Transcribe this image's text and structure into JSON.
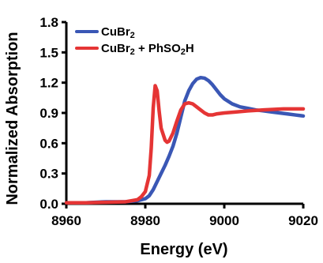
{
  "chart_data": {
    "type": "line",
    "title": "",
    "xlabel": "Energy (eV)",
    "ylabel": "Normalized  Absorption",
    "xlim": [
      8960,
      9020
    ],
    "ylim": [
      0.0,
      1.8
    ],
    "xticks": [
      8960,
      8980,
      9000,
      9020
    ],
    "yticks": [
      0.0,
      0.3,
      0.6,
      0.9,
      1.2,
      1.5,
      1.8
    ],
    "xtick_labels": [
      "8960",
      "8980",
      "9000",
      "9020"
    ],
    "ytick_labels": [
      "0.0",
      "0.3",
      "0.6",
      "0.9",
      "1.2",
      "1.5",
      "1.8"
    ],
    "grid": false,
    "legend_position": "top-left",
    "series": [
      {
        "legend_base": "CuBr",
        "legend_sub": "2",
        "legend_rest": "",
        "color": "#3a57b5",
        "points": [
          [
            8960,
            0.01
          ],
          [
            8965,
            0.01
          ],
          [
            8970,
            0.02
          ],
          [
            8975,
            0.02
          ],
          [
            8978,
            0.03
          ],
          [
            8980,
            0.05
          ],
          [
            8981,
            0.08
          ],
          [
            8982,
            0.14
          ],
          [
            8983,
            0.22
          ],
          [
            8984,
            0.3
          ],
          [
            8985,
            0.38
          ],
          [
            8986,
            0.47
          ],
          [
            8987,
            0.57
          ],
          [
            8988,
            0.7
          ],
          [
            8989,
            0.86
          ],
          [
            8990,
            1.02
          ],
          [
            8991,
            1.12
          ],
          [
            8992,
            1.19
          ],
          [
            8993,
            1.235
          ],
          [
            8994,
            1.25
          ],
          [
            8995,
            1.245
          ],
          [
            8996,
            1.22
          ],
          [
            8997,
            1.18
          ],
          [
            8998,
            1.13
          ],
          [
            8999,
            1.08
          ],
          [
            9000,
            1.04
          ],
          [
            9002,
            0.99
          ],
          [
            9004,
            0.96
          ],
          [
            9006,
            0.945
          ],
          [
            9008,
            0.93
          ],
          [
            9010,
            0.92
          ],
          [
            9012,
            0.91
          ],
          [
            9014,
            0.9
          ],
          [
            9016,
            0.89
          ],
          [
            9018,
            0.88
          ],
          [
            9020,
            0.87
          ]
        ]
      },
      {
        "legend_base": "CuBr",
        "legend_sub": "2",
        "legend_rest": " + PhSO",
        "legend_sub2": "2",
        "legend_rest2": "H",
        "color": "#e53535",
        "points": [
          [
            8960,
            0.01
          ],
          [
            8965,
            0.01
          ],
          [
            8970,
            0.015
          ],
          [
            8975,
            0.02
          ],
          [
            8978,
            0.04
          ],
          [
            8979,
            0.07
          ],
          [
            8980,
            0.12
          ],
          [
            8981,
            0.28
          ],
          [
            8981.5,
            0.55
          ],
          [
            8982,
            0.95
          ],
          [
            8982.5,
            1.17
          ],
          [
            8983,
            1.12
          ],
          [
            8983.5,
            0.92
          ],
          [
            8984,
            0.75
          ],
          [
            8985,
            0.63
          ],
          [
            8985.5,
            0.61
          ],
          [
            8986,
            0.62
          ],
          [
            8987,
            0.7
          ],
          [
            8988,
            0.82
          ],
          [
            8989,
            0.93
          ],
          [
            8990,
            0.99
          ],
          [
            8991,
            1.0
          ],
          [
            8992,
            0.99
          ],
          [
            8993,
            0.96
          ],
          [
            8994,
            0.93
          ],
          [
            8995,
            0.9
          ],
          [
            8996,
            0.88
          ],
          [
            8997,
            0.88
          ],
          [
            8998,
            0.89
          ],
          [
            9000,
            0.9
          ],
          [
            9003,
            0.91
          ],
          [
            9006,
            0.92
          ],
          [
            9010,
            0.93
          ],
          [
            9015,
            0.94
          ],
          [
            9020,
            0.94
          ]
        ]
      }
    ]
  }
}
